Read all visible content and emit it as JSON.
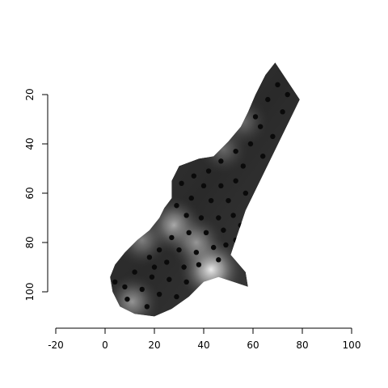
{
  "chart_data": {
    "type": "heatmap",
    "title": "",
    "xlabel": "",
    "ylabel": "",
    "xlim": [
      -20,
      100
    ],
    "ylim": [
      115,
      10
    ],
    "y_axis_inverted": true,
    "x_ticks": [
      -20,
      0,
      20,
      40,
      60,
      80,
      100
    ],
    "y_ticks": [
      20,
      40,
      60,
      80,
      100
    ],
    "colormap": [
      "#0d0d0d",
      "#ffffff"
    ],
    "legend": "none",
    "grid": false,
    "region_outline": [
      [
        69,
        7
      ],
      [
        79,
        22
      ],
      [
        57,
        67
      ],
      [
        51,
        85
      ],
      [
        57,
        92
      ],
      [
        58,
        98
      ],
      [
        52,
        96
      ],
      [
        46,
        94
      ],
      [
        40,
        96
      ],
      [
        34,
        102
      ],
      [
        27,
        107
      ],
      [
        20,
        110
      ],
      [
        12,
        109
      ],
      [
        6,
        106
      ],
      [
        3,
        100
      ],
      [
        2,
        94
      ],
      [
        4,
        89
      ],
      [
        8,
        84
      ],
      [
        13,
        79
      ],
      [
        18,
        75
      ],
      [
        22,
        70
      ],
      [
        24,
        66
      ],
      [
        27,
        62
      ],
      [
        27,
        55
      ],
      [
        30,
        49
      ],
      [
        38,
        46
      ],
      [
        44,
        45
      ],
      [
        50,
        39
      ],
      [
        55,
        33
      ],
      [
        58,
        27
      ],
      [
        61,
        20
      ],
      [
        65,
        12
      ]
    ],
    "bright_spots": [
      {
        "x": 28,
        "y": 73,
        "value": 0.6
      },
      {
        "x": 43,
        "y": 91,
        "value": 0.9
      },
      {
        "x": 37,
        "y": 80,
        "value": 0.5
      },
      {
        "x": 11,
        "y": 104,
        "value": 0.5
      },
      {
        "x": 15,
        "y": 79,
        "value": 0.4
      },
      {
        "x": 48,
        "y": 42,
        "value": 0.3
      },
      {
        "x": 56,
        "y": 31,
        "value": 0.3
      }
    ],
    "points": [
      [
        70,
        16
      ],
      [
        66,
        22
      ],
      [
        72,
        27
      ],
      [
        63,
        33
      ],
      [
        68,
        37
      ],
      [
        59,
        40
      ],
      [
        64,
        45
      ],
      [
        56,
        49
      ],
      [
        53,
        43
      ],
      [
        47,
        47
      ],
      [
        42,
        51
      ],
      [
        36,
        53
      ],
      [
        31,
        56
      ],
      [
        40,
        57
      ],
      [
        47,
        57
      ],
      [
        53,
        55
      ],
      [
        57,
        60
      ],
      [
        50,
        63
      ],
      [
        43,
        63
      ],
      [
        35,
        62
      ],
      [
        29,
        65
      ],
      [
        33,
        69
      ],
      [
        39,
        70
      ],
      [
        46,
        70
      ],
      [
        52,
        69
      ],
      [
        55,
        73
      ],
      [
        48,
        75
      ],
      [
        41,
        76
      ],
      [
        34,
        76
      ],
      [
        27,
        78
      ],
      [
        22,
        83
      ],
      [
        30,
        83
      ],
      [
        37,
        84
      ],
      [
        44,
        82
      ],
      [
        49,
        81
      ],
      [
        53,
        79
      ],
      [
        18,
        86
      ],
      [
        25,
        88
      ],
      [
        32,
        90
      ],
      [
        38,
        89
      ],
      [
        46,
        87
      ],
      [
        12,
        92
      ],
      [
        19,
        94
      ],
      [
        26,
        95
      ],
      [
        33,
        96
      ],
      [
        8,
        98
      ],
      [
        15,
        99
      ],
      [
        22,
        101
      ],
      [
        29,
        102
      ],
      [
        17,
        106
      ],
      [
        9,
        103
      ],
      [
        40,
        99
      ],
      [
        4,
        96
      ],
      [
        20,
        90
      ],
      [
        61,
        29
      ],
      [
        74,
        20
      ]
    ]
  }
}
